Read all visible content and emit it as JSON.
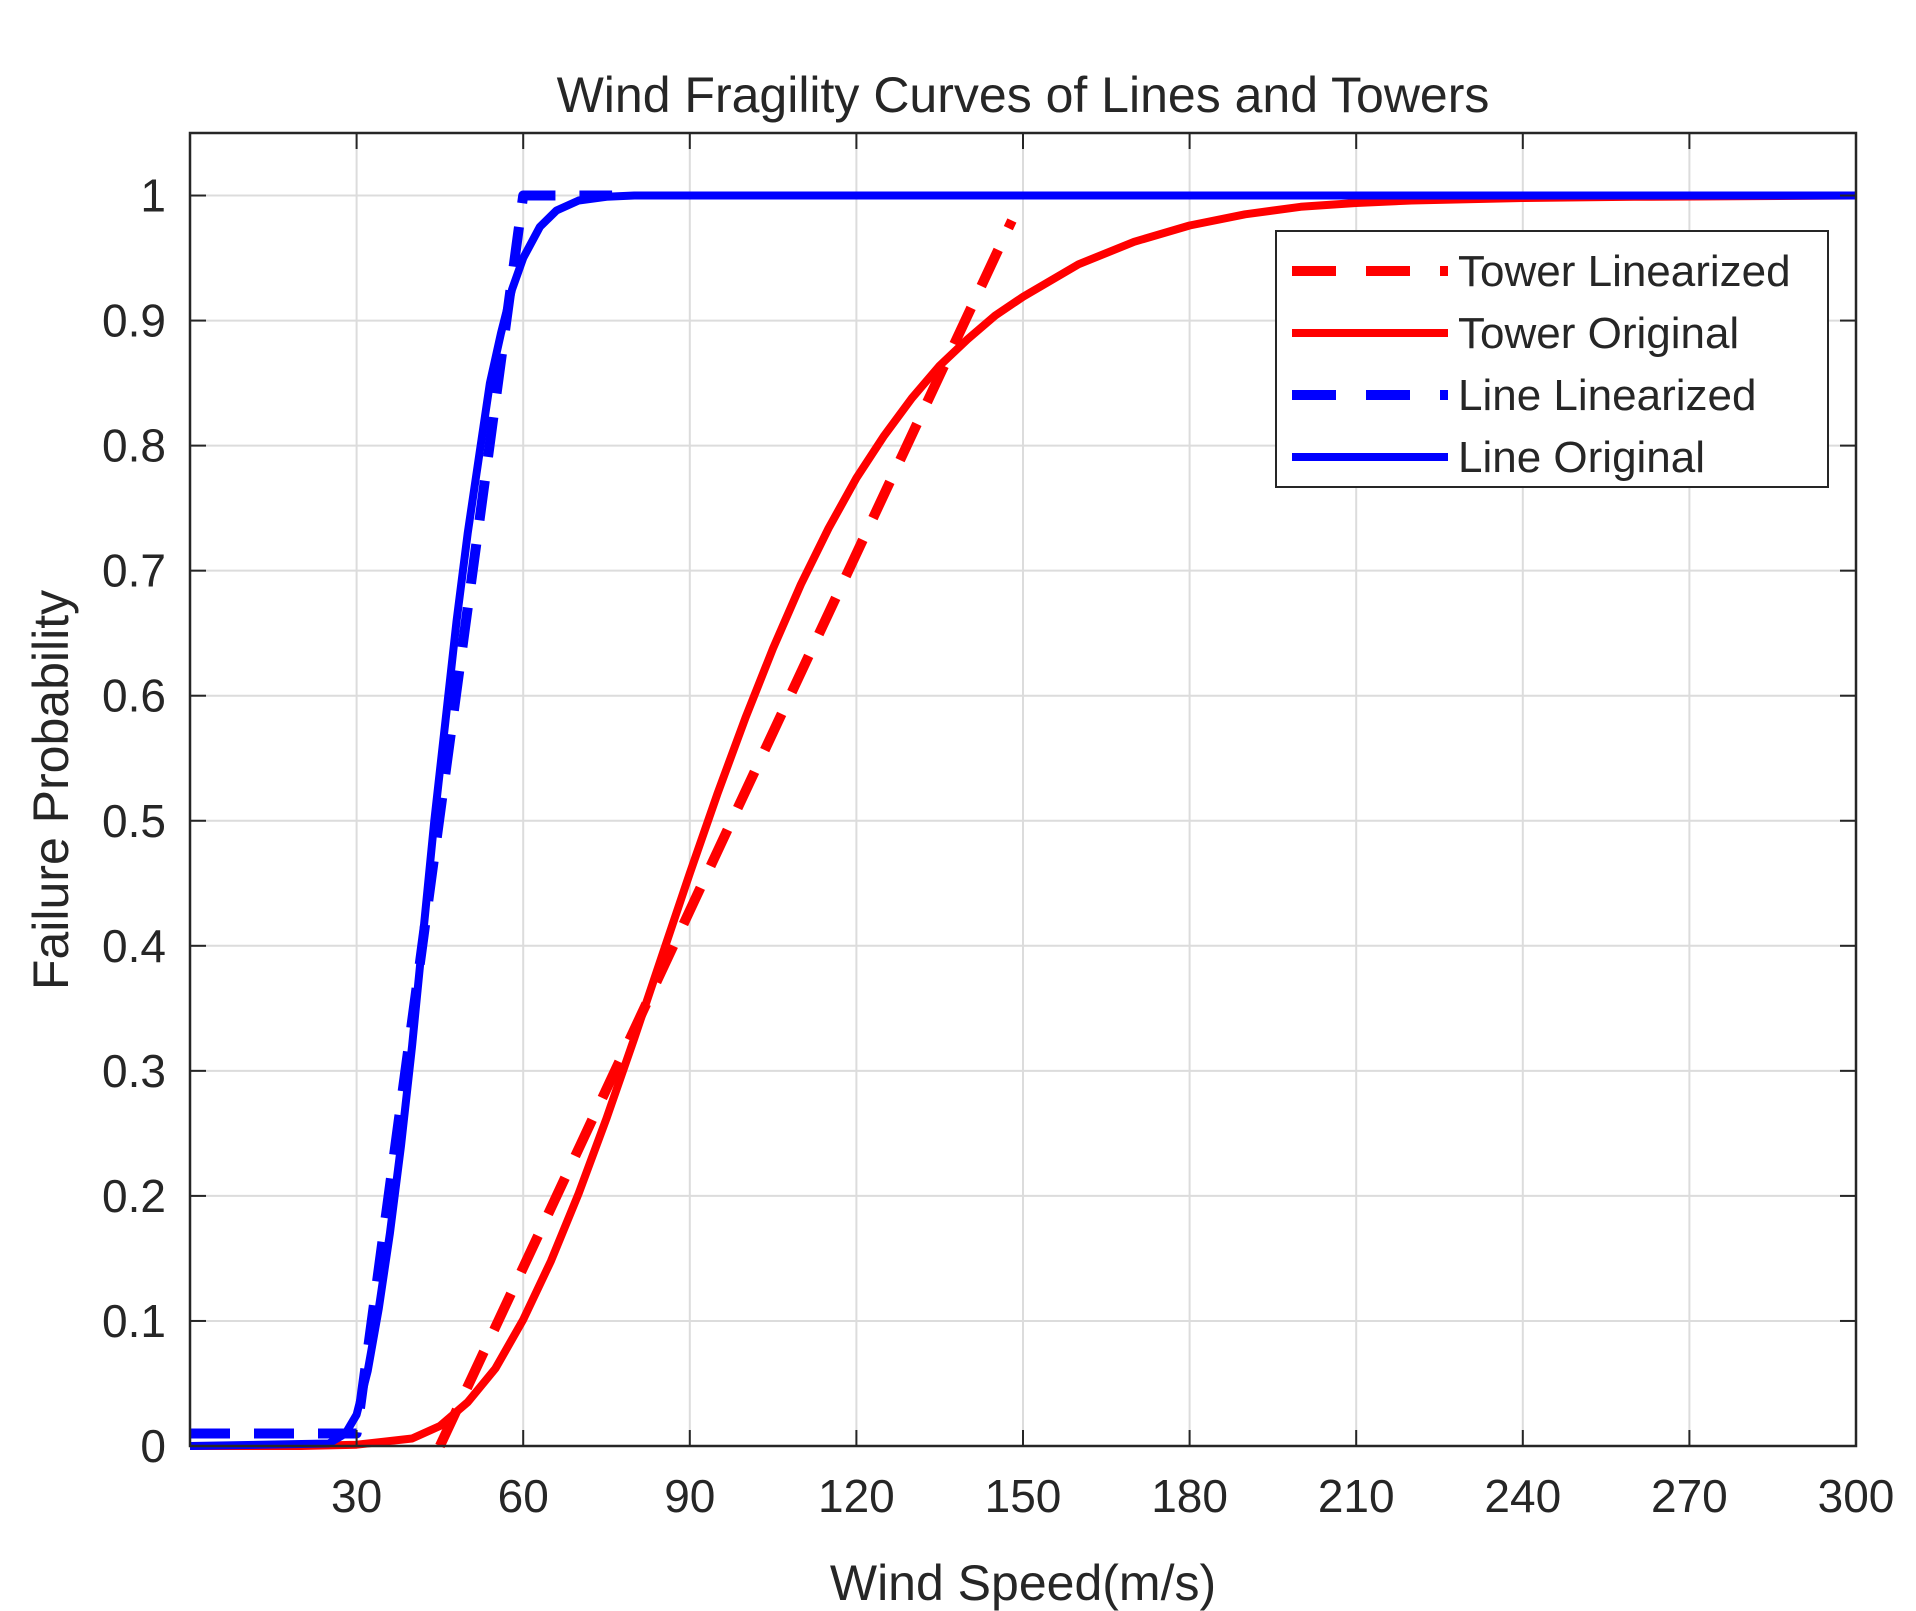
{
  "chart_data": {
    "type": "line",
    "title": "Wind Fragility Curves of Lines and Towers",
    "xlabel": "Wind Speed(m/s)",
    "ylabel": "Failure Probability",
    "xlim": [
      0,
      300
    ],
    "ylim": [
      0,
      1.05
    ],
    "xticks": [
      30,
      60,
      90,
      120,
      150,
      180,
      210,
      240,
      270,
      300
    ],
    "yticks": [
      0,
      0.1,
      0.2,
      0.3,
      0.4,
      0.5,
      0.6,
      0.7,
      0.8,
      0.9,
      1
    ],
    "xtick_labels": [
      "30",
      "60",
      "90",
      "120",
      "150",
      "180",
      "210",
      "240",
      "270",
      "300"
    ],
    "ytick_labels": [
      "0",
      "0.1",
      "0.2",
      "0.3",
      "0.4",
      "0.5",
      "0.6",
      "0.7",
      "0.8",
      "0.9",
      "1"
    ],
    "grid": true,
    "legend_position": "top-right",
    "series": [
      {
        "name": "Tower Linearized",
        "color": "#ff0000",
        "style": "dashed",
        "x": [
          45,
          148
        ],
        "y": [
          0,
          0.98
        ]
      },
      {
        "name": "Tower Original",
        "color": "#ff0000",
        "style": "solid",
        "x": [
          0,
          20,
          30,
          40,
          45,
          50,
          55,
          60,
          65,
          70,
          75,
          80,
          85,
          90,
          95,
          100,
          105,
          110,
          115,
          120,
          125,
          130,
          135,
          140,
          145,
          150,
          160,
          170,
          180,
          190,
          200,
          210,
          220,
          240,
          260,
          300
        ],
        "y": [
          0,
          0,
          0.001,
          0.006,
          0.016,
          0.035,
          0.062,
          0.101,
          0.148,
          0.202,
          0.262,
          0.326,
          0.392,
          0.458,
          0.522,
          0.582,
          0.638,
          0.689,
          0.734,
          0.774,
          0.808,
          0.838,
          0.864,
          0.885,
          0.904,
          0.919,
          0.945,
          0.963,
          0.976,
          0.985,
          0.991,
          0.994,
          0.996,
          0.998,
          0.999,
          1.0
        ]
      },
      {
        "name": "Line Linearized",
        "color": "#0000ff",
        "style": "dashed",
        "x": [
          0,
          30,
          60,
          76
        ],
        "y": [
          0.01,
          0.01,
          1.0,
          1.0
        ]
      },
      {
        "name": "Line Original",
        "color": "#0000ff",
        "style": "solid",
        "x": [
          0,
          25,
          28,
          30,
          32,
          34,
          36,
          38,
          40,
          42,
          44,
          46,
          48,
          50,
          52,
          54,
          56,
          58,
          60,
          63,
          66,
          70,
          75,
          80,
          90,
          300
        ],
        "y": [
          0,
          0.002,
          0.01,
          0.025,
          0.06,
          0.11,
          0.17,
          0.24,
          0.32,
          0.41,
          0.5,
          0.58,
          0.66,
          0.73,
          0.79,
          0.85,
          0.89,
          0.925,
          0.95,
          0.975,
          0.988,
          0.996,
          0.999,
          1.0,
          1.0,
          1.0
        ]
      }
    ]
  }
}
